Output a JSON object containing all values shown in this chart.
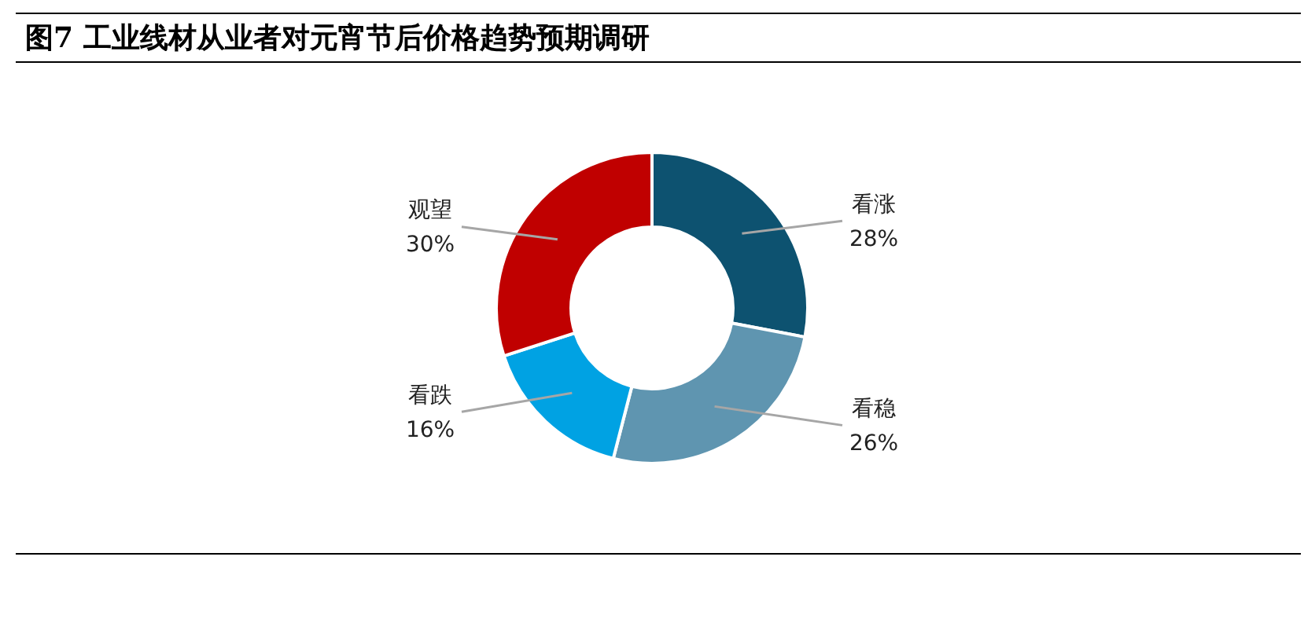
{
  "chart_data": {
    "type": "donut",
    "title": "图7  工业线材从业者对元宵节后价格趋势预期调研",
    "categories": [
      "看涨",
      "看稳",
      "看跌",
      "观望"
    ],
    "values": [
      28,
      26,
      16,
      30
    ],
    "colors": [
      "#0d5270",
      "#5f95b0",
      "#00a2e3",
      "#c00000"
    ],
    "value_labels": [
      "28%",
      "26%",
      "16%",
      "30%"
    ],
    "legend": false
  }
}
